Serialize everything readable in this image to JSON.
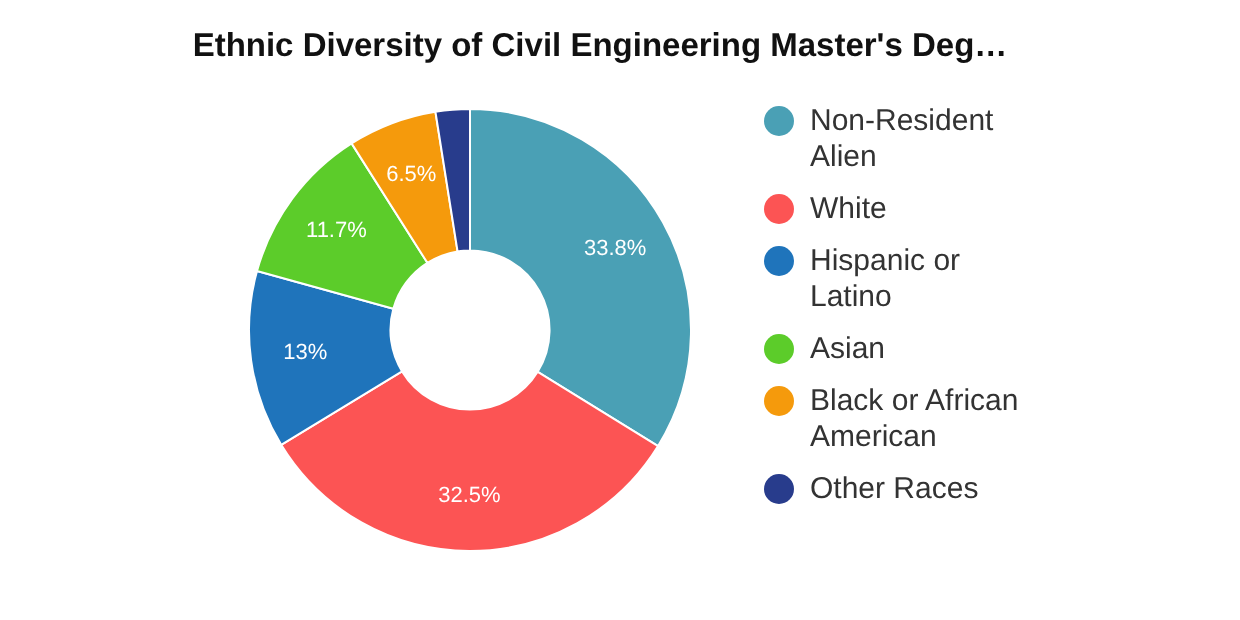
{
  "chart_data": {
    "type": "donut",
    "title": "Ethnic Diversity of Civil Engineering Master's Deg…",
    "categories": [
      "Non-Resident Alien",
      "White",
      "Hispanic or Latino",
      "Asian",
      "Black or African American",
      "Other Races"
    ],
    "values": [
      33.8,
      32.5,
      13,
      11.7,
      6.5,
      2.5
    ],
    "colors": [
      "#4aa0b5",
      "#fc5454",
      "#1f74bb",
      "#5ccc2a",
      "#f59a0c",
      "#283c8c"
    ],
    "value_labels": [
      "33.8%",
      "32.5%",
      "13%",
      "11.7%",
      "6.5%",
      null
    ],
    "legend": "right"
  }
}
